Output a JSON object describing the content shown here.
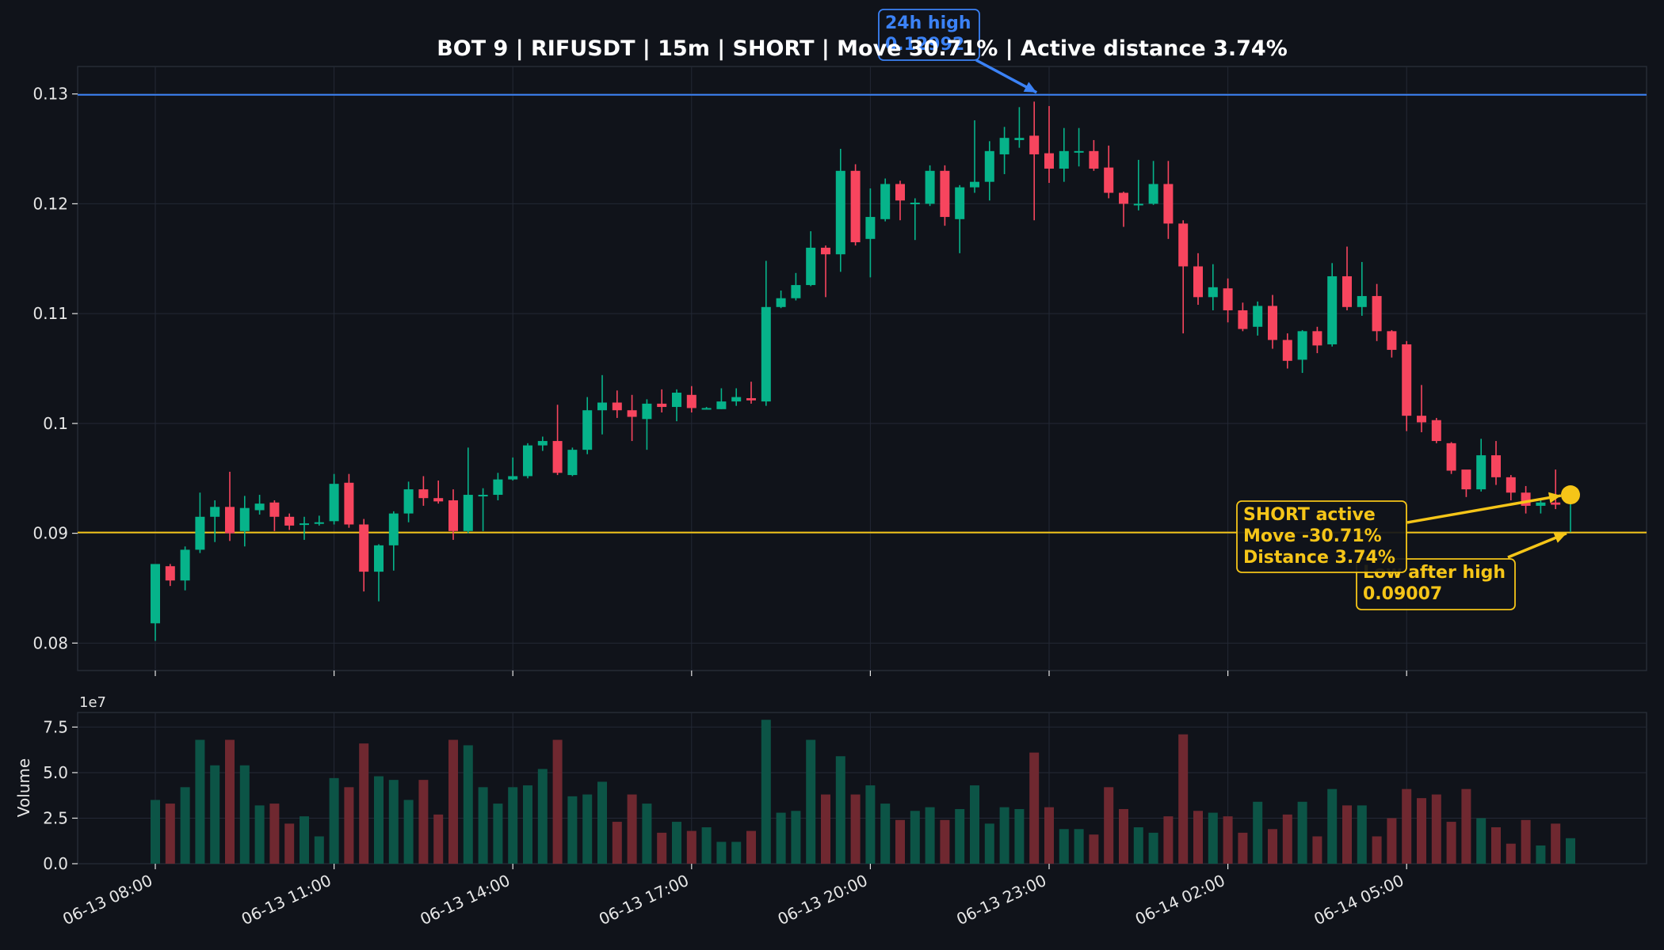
{
  "chart_data": {
    "type": "candlestick",
    "title": "BOT 9 | RIFUSDT | 15m | SHORT | Move 30.71% | Active distance 3.74%",
    "ylim": [
      0.0775,
      0.1325
    ],
    "yticks": [
      0.08,
      0.09,
      0.1,
      0.11,
      0.12,
      0.13
    ],
    "ytick_labels": [
      "0.08",
      "0.09",
      "0.1",
      "0.11",
      "0.12",
      "0.13"
    ],
    "xticks": [
      {
        "label": "06-13 08:00",
        "index": 0
      },
      {
        "label": "06-13 11:00",
        "index": 12
      },
      {
        "label": "06-13 14:00",
        "index": 24
      },
      {
        "label": "06-13 17:00",
        "index": 36
      },
      {
        "label": "06-13 20:00",
        "index": 48
      },
      {
        "label": "06-13 23:00",
        "index": 60
      },
      {
        "label": "06-14 02:00",
        "index": 72
      },
      {
        "label": "06-14 05:00",
        "index": 84
      }
    ],
    "grid": true,
    "colors": {
      "up": "#06b38a",
      "down": "#f7455e",
      "vol_up": "#0c5446",
      "vol_down": "#6f2830",
      "high_line": "#3b82f6",
      "low_line": "#f5c518",
      "marker": "#f5c518"
    },
    "candles": [
      [
        0.0818,
        0.0872,
        0.0802,
        0.087
      ],
      [
        0.087,
        0.0857,
        0.0852,
        0.0872
      ],
      [
        0.0857,
        0.0885,
        0.0848,
        0.0888
      ],
      [
        0.0885,
        0.0915,
        0.0882,
        0.0937
      ],
      [
        0.0915,
        0.0924,
        0.0892,
        0.093
      ],
      [
        0.0924,
        0.09,
        0.0893,
        0.0956
      ],
      [
        0.0902,
        0.0923,
        0.0888,
        0.0934
      ],
      [
        0.0921,
        0.0927,
        0.0917,
        0.0935
      ],
      [
        0.0928,
        0.0915,
        0.0902,
        0.093
      ],
      [
        0.0915,
        0.0907,
        0.0903,
        0.0918
      ],
      [
        0.0908,
        0.0909,
        0.0894,
        0.0915
      ],
      [
        0.0909,
        0.091,
        0.0907,
        0.0916
      ],
      [
        0.0911,
        0.0945,
        0.0908,
        0.0954
      ],
      [
        0.0946,
        0.0908,
        0.0905,
        0.0954
      ],
      [
        0.0908,
        0.0865,
        0.0847,
        0.0913
      ],
      [
        0.0865,
        0.0889,
        0.0838,
        0.089
      ],
      [
        0.0889,
        0.0918,
        0.0866,
        0.092
      ],
      [
        0.0918,
        0.094,
        0.091,
        0.0947
      ],
      [
        0.094,
        0.0932,
        0.0925,
        0.0952
      ],
      [
        0.0932,
        0.0929,
        0.0927,
        0.0948
      ],
      [
        0.093,
        0.0902,
        0.0894,
        0.094
      ],
      [
        0.0902,
        0.0935,
        0.09,
        0.0978
      ],
      [
        0.0935,
        0.0935,
        0.0902,
        0.0941
      ],
      [
        0.0935,
        0.0949,
        0.093,
        0.0955
      ],
      [
        0.0949,
        0.0952,
        0.0948,
        0.0969
      ],
      [
        0.0952,
        0.098,
        0.095,
        0.0982
      ],
      [
        0.098,
        0.0984,
        0.0975,
        0.0988
      ],
      [
        0.0984,
        0.0955,
        0.0953,
        0.1017
      ],
      [
        0.0953,
        0.0976,
        0.0952,
        0.0978
      ],
      [
        0.0976,
        0.1012,
        0.0972,
        0.1024
      ],
      [
        0.1012,
        0.1019,
        0.099,
        0.1044
      ],
      [
        0.1019,
        0.1012,
        0.1005,
        0.103
      ],
      [
        0.1012,
        0.1006,
        0.0984,
        0.1026
      ],
      [
        0.1004,
        0.1018,
        0.0976,
        0.1022
      ],
      [
        0.1018,
        0.1015,
        0.101,
        0.1031
      ],
      [
        0.1015,
        0.1028,
        0.1002,
        0.1031
      ],
      [
        0.1026,
        0.1014,
        0.101,
        0.1034
      ],
      [
        0.1014,
        0.1014,
        0.1013,
        0.1015
      ],
      [
        0.1013,
        0.102,
        0.1013,
        0.1032
      ],
      [
        0.102,
        0.1024,
        0.1016,
        0.1032
      ],
      [
        0.1023,
        0.1021,
        0.1018,
        0.1038
      ],
      [
        0.102,
        0.1106,
        0.1016,
        0.1148
      ],
      [
        0.1106,
        0.1114,
        0.1105,
        0.1121
      ],
      [
        0.1114,
        0.1126,
        0.1112,
        0.1137
      ],
      [
        0.1126,
        0.116,
        0.1125,
        0.1175
      ],
      [
        0.116,
        0.1154,
        0.1115,
        0.1162
      ],
      [
        0.1154,
        0.123,
        0.1138,
        0.125
      ],
      [
        0.123,
        0.1165,
        0.1162,
        0.1236
      ],
      [
        0.1168,
        0.1188,
        0.1133,
        0.1214
      ],
      [
        0.1186,
        0.1218,
        0.1184,
        0.1223
      ],
      [
        0.1218,
        0.1203,
        0.1185,
        0.1221
      ],
      [
        0.1201,
        0.1201,
        0.1167,
        0.1205
      ],
      [
        0.12,
        0.123,
        0.1198,
        0.1235
      ],
      [
        0.123,
        0.1188,
        0.118,
        0.1235
      ],
      [
        0.1186,
        0.1215,
        0.1155,
        0.1217
      ],
      [
        0.1215,
        0.122,
        0.121,
        0.1276
      ],
      [
        0.122,
        0.1248,
        0.1203,
        0.1257
      ],
      [
        0.1245,
        0.126,
        0.1227,
        0.127
      ],
      [
        0.1258,
        0.126,
        0.1251,
        0.1288
      ],
      [
        0.1262,
        0.1245,
        0.1185,
        0.1293
      ],
      [
        0.1246,
        0.1232,
        0.1219,
        0.1289
      ],
      [
        0.1232,
        0.1248,
        0.122,
        0.1269
      ],
      [
        0.1248,
        0.1248,
        0.1234,
        0.1269
      ],
      [
        0.1248,
        0.1232,
        0.123,
        0.1258
      ],
      [
        0.1233,
        0.121,
        0.1205,
        0.1253
      ],
      [
        0.121,
        0.12,
        0.1179,
        0.1211
      ],
      [
        0.12,
        0.12,
        0.1194,
        0.124
      ],
      [
        0.12,
        0.1218,
        0.1199,
        0.1239
      ],
      [
        0.1218,
        0.1182,
        0.1168,
        0.1239
      ],
      [
        0.1182,
        0.1143,
        0.1082,
        0.1185
      ],
      [
        0.1143,
        0.1115,
        0.1108,
        0.1155
      ],
      [
        0.1115,
        0.1124,
        0.1103,
        0.1145
      ],
      [
        0.1123,
        0.1103,
        0.1092,
        0.1132
      ],
      [
        0.1103,
        0.1086,
        0.1084,
        0.111
      ],
      [
        0.1088,
        0.1107,
        0.108,
        0.1111
      ],
      [
        0.1107,
        0.1076,
        0.1068,
        0.1117
      ],
      [
        0.1076,
        0.1057,
        0.105,
        0.1082
      ],
      [
        0.1058,
        0.1084,
        0.1046,
        0.1085
      ],
      [
        0.1084,
        0.1071,
        0.1064,
        0.1088
      ],
      [
        0.1072,
        0.1134,
        0.107,
        0.1146
      ],
      [
        0.1134,
        0.1106,
        0.1103,
        0.1161
      ],
      [
        0.1106,
        0.1116,
        0.1098,
        0.1147
      ],
      [
        0.1116,
        0.1084,
        0.1075,
        0.1127
      ],
      [
        0.1084,
        0.1067,
        0.106,
        0.1085
      ],
      [
        0.1072,
        0.1007,
        0.0993,
        0.1075
      ],
      [
        0.1007,
        0.1001,
        0.0992,
        0.1035
      ],
      [
        0.1003,
        0.0984,
        0.0982,
        0.1005
      ],
      [
        0.0982,
        0.0957,
        0.0954,
        0.0983
      ],
      [
        0.0958,
        0.094,
        0.0933,
        0.0957
      ],
      [
        0.094,
        0.0971,
        0.0938,
        0.0986
      ],
      [
        0.0971,
        0.0951,
        0.0944,
        0.0984
      ],
      [
        0.0951,
        0.0937,
        0.093,
        0.0953
      ],
      [
        0.0937,
        0.0925,
        0.0918,
        0.0943
      ],
      [
        0.0925,
        0.0928,
        0.0918,
        0.093
      ],
      [
        0.0928,
        0.0926,
        0.0922,
        0.0958
      ],
      [
        0.093,
        0.0935,
        0.0901,
        0.0936
      ]
    ],
    "volume": {
      "ylabel": "Volume",
      "ylim": [
        0,
        8.3
      ],
      "yticks": [
        0,
        2.5,
        5,
        7.5
      ],
      "ytick_labels": [
        "0.0",
        "2.5",
        "5.0",
        "7.5"
      ],
      "multiplier_label": "1e7",
      "values": [
        3.5,
        3.3,
        4.2,
        6.8,
        5.4,
        6.8,
        5.4,
        3.2,
        3.3,
        2.2,
        2.6,
        1.5,
        4.7,
        4.2,
        6.6,
        4.8,
        4.6,
        3.5,
        4.6,
        2.7,
        6.8,
        6.5,
        4.2,
        3.3,
        4.2,
        4.3,
        5.2,
        6.8,
        3.7,
        3.8,
        4.5,
        2.3,
        3.8,
        3.3,
        1.7,
        2.3,
        1.8,
        2.0,
        1.2,
        1.2,
        1.8,
        7.9,
        2.8,
        2.9,
        6.8,
        3.8,
        5.9,
        3.8,
        4.3,
        3.3,
        2.4,
        2.9,
        3.1,
        2.4,
        3.0,
        4.3,
        2.2,
        3.1,
        3.0,
        6.1,
        3.1,
        1.9,
        1.9,
        1.6,
        4.2,
        3.0,
        2.0,
        1.7,
        2.6,
        7.1,
        2.9,
        2.8,
        2.6,
        1.7,
        3.4,
        1.9,
        2.7,
        3.4,
        1.5,
        4.1,
        3.2,
        3.2,
        1.5,
        2.5,
        4.1,
        3.6,
        3.8,
        2.3,
        4.1,
        2.5,
        2.0,
        1.1,
        2.4,
        1.0,
        2.2,
        1.4
      ]
    },
    "lines": [
      {
        "name": "24h high",
        "value": 0.12992,
        "color": "#3b82f6"
      },
      {
        "name": "Low after high",
        "value": 0.09007,
        "color": "#f5c518"
      }
    ],
    "annotations": [
      {
        "id": "high",
        "lines": [
          "24h high",
          "0.12992"
        ],
        "target_index": 59,
        "target_value": 0.12992,
        "color": "#3b82f6"
      },
      {
        "id": "low",
        "lines": [
          "Low after high",
          "0.09007"
        ],
        "target_index": 95,
        "target_value": 0.09007,
        "color": "#f5c518"
      },
      {
        "id": "short",
        "lines": [
          "SHORT active",
          "Move -30.71%",
          "Distance 3.74%"
        ],
        "target_index": 95,
        "target_value": 0.0935,
        "color": "#f5c518"
      }
    ]
  }
}
